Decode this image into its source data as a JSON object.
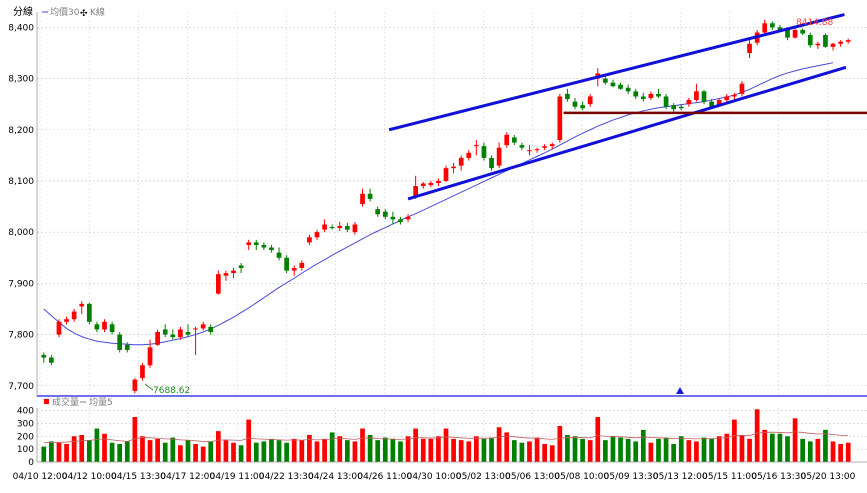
{
  "chart_data": [
    {
      "type": "candlestick",
      "legend": {
        "title": "分線",
        "items": [
          {
            "label": "均價30",
            "color": "#4a4adb"
          },
          {
            "label": "K線",
            "color": "#000000"
          }
        ]
      },
      "y_ticks": [
        "8,400",
        "8,300",
        "8,200",
        "8,100",
        "8,000",
        "7,900",
        "7,800",
        "7,700"
      ],
      "ylim": [
        7680,
        8430
      ],
      "grid": true,
      "colors": {
        "up": "#ff0000",
        "down": "#008000",
        "ma": "#4a4adb",
        "channel": "#1010d8",
        "support": "#7a0000"
      },
      "high_label": "8414.88",
      "low_label": "7688.62",
      "candles": [
        [
          7760,
          7765,
          7745,
          7755
        ],
        [
          7755,
          7760,
          7740,
          7745
        ],
        [
          7800,
          7830,
          7795,
          7825
        ],
        [
          7825,
          7835,
          7820,
          7830
        ],
        [
          7830,
          7850,
          7825,
          7845
        ],
        [
          7855,
          7865,
          7840,
          7860
        ],
        [
          7860,
          7862,
          7820,
          7825
        ],
        [
          7820,
          7825,
          7805,
          7810
        ],
        [
          7810,
          7830,
          7805,
          7825
        ],
        [
          7820,
          7825,
          7800,
          7805
        ],
        [
          7800,
          7805,
          7765,
          7770
        ],
        [
          7780,
          7785,
          7765,
          7770
        ],
        [
          7690,
          7715,
          7685,
          7712
        ],
        [
          7715,
          7745,
          7710,
          7740
        ],
        [
          7740,
          7790,
          7735,
          7775
        ],
        [
          7780,
          7810,
          7778,
          7805
        ],
        [
          7810,
          7820,
          7795,
          7800
        ],
        [
          7800,
          7810,
          7790,
          7795
        ],
        [
          7795,
          7815,
          7790,
          7810
        ],
        [
          7805,
          7820,
          7795,
          7800
        ],
        [
          7810,
          7815,
          7760,
          7812
        ],
        [
          7812,
          7825,
          7808,
          7820
        ],
        [
          7815,
          7820,
          7800,
          7805
        ],
        [
          7880,
          7925,
          7878,
          7918
        ],
        [
          7915,
          7925,
          7905,
          7920
        ],
        [
          7920,
          7930,
          7910,
          7925
        ],
        [
          7935,
          7940,
          7920,
          7930
        ],
        [
          7975,
          7985,
          7965,
          7980
        ],
        [
          7980,
          7985,
          7965,
          7975
        ],
        [
          7975,
          7980,
          7965,
          7970
        ],
        [
          7970,
          7975,
          7960,
          7965
        ],
        [
          7960,
          7970,
          7945,
          7950
        ],
        [
          7950,
          7955,
          7920,
          7925
        ],
        [
          7925,
          7935,
          7915,
          7930
        ],
        [
          7930,
          7945,
          7925,
          7940
        ],
        [
          7980,
          7995,
          7975,
          7990
        ],
        [
          7990,
          8005,
          7985,
          8000
        ],
        [
          8005,
          8025,
          8000,
          8015
        ],
        [
          8010,
          8015,
          8005,
          8008
        ],
        [
          8008,
          8020,
          8002,
          8012
        ],
        [
          8012,
          8018,
          8000,
          8005
        ],
        [
          8000,
          8020,
          7995,
          8015
        ],
        [
          8055,
          8085,
          8050,
          8075
        ],
        [
          8075,
          8085,
          8060,
          8065
        ],
        [
          8045,
          8050,
          8030,
          8035
        ],
        [
          8040,
          8045,
          8025,
          8030
        ],
        [
          8030,
          8040,
          8015,
          8025
        ],
        [
          8025,
          8030,
          8015,
          8020
        ],
        [
          8025,
          8035,
          8020,
          8030
        ],
        [
          8070,
          8110,
          8065,
          8090
        ],
        [
          8090,
          8098,
          8085,
          8095
        ],
        [
          8092,
          8100,
          8088,
          8096
        ],
        [
          8096,
          8105,
          8090,
          8100
        ],
        [
          8100,
          8130,
          8098,
          8125
        ],
        [
          8125,
          8135,
          8115,
          8128
        ],
        [
          8130,
          8150,
          8120,
          8145
        ],
        [
          8145,
          8160,
          8140,
          8155
        ],
        [
          8168,
          8180,
          8150,
          8170
        ],
        [
          8168,
          8175,
          8140,
          8145
        ],
        [
          8145,
          8150,
          8120,
          8125
        ],
        [
          8130,
          8175,
          8125,
          8165
        ],
        [
          8170,
          8195,
          8165,
          8190
        ],
        [
          8185,
          8190,
          8170,
          8175
        ],
        [
          8170,
          8175,
          8160,
          8165
        ],
        [
          8160,
          8170,
          8150,
          8160
        ],
        [
          8160,
          8165,
          8155,
          8162
        ],
        [
          8165,
          8172,
          8160,
          8168
        ],
        [
          8168,
          8175,
          8162,
          8172
        ],
        [
          8180,
          8270,
          8175,
          8265
        ],
        [
          8270,
          8280,
          8255,
          8260
        ],
        [
          8255,
          8262,
          8240,
          8245
        ],
        [
          8248,
          8255,
          8238,
          8242
        ],
        [
          8250,
          8270,
          8245,
          8265
        ],
        [
          8300,
          8320,
          8285,
          8310
        ],
        [
          8300,
          8308,
          8288,
          8292
        ],
        [
          8292,
          8298,
          8283,
          8285
        ],
        [
          8288,
          8292,
          8278,
          8280
        ],
        [
          8282,
          8288,
          8270,
          8275
        ],
        [
          8275,
          8280,
          8260,
          8265
        ],
        [
          8265,
          8272,
          8255,
          8260
        ],
        [
          8262,
          8275,
          8258,
          8270
        ],
        [
          8270,
          8280,
          8262,
          8265
        ],
        [
          8265,
          8270,
          8240,
          8245
        ],
        [
          8248,
          8252,
          8235,
          8240
        ],
        [
          8245,
          8250,
          8238,
          8242
        ],
        [
          8250,
          8262,
          8245,
          8258
        ],
        [
          8258,
          8290,
          8255,
          8275
        ],
        [
          8275,
          8278,
          8250,
          8255
        ],
        [
          8255,
          8260,
          8240,
          8245
        ],
        [
          8248,
          8262,
          8245,
          8258
        ],
        [
          8258,
          8270,
          8252,
          8265
        ],
        [
          8265,
          8272,
          8258,
          8268
        ],
        [
          8270,
          8295,
          8265,
          8290
        ],
        [
          8350,
          8375,
          8340,
          8368
        ],
        [
          8370,
          8395,
          8365,
          8390
        ],
        [
          8390,
          8415,
          8385,
          8408
        ],
        [
          8408,
          8412,
          8395,
          8400
        ],
        [
          8400,
          8405,
          8390,
          8395
        ],
        [
          8395,
          8400,
          8375,
          8380
        ],
        [
          8380,
          8398,
          8378,
          8395
        ],
        [
          8395,
          8398,
          8385,
          8388
        ],
        [
          8385,
          8390,
          8360,
          8365
        ],
        [
          8365,
          8372,
          8358,
          8368
        ],
        [
          8385,
          8388,
          8360,
          8362
        ],
        [
          8362,
          8370,
          8355,
          8368
        ],
        [
          8368,
          8375,
          8362,
          8372
        ],
        [
          8372,
          8378,
          8368,
          8375
        ]
      ],
      "ma30": [
        7850,
        7837,
        7824,
        7812,
        7803,
        7796,
        7791,
        7787,
        7785,
        7783,
        7782,
        7781,
        7780,
        7780,
        7781,
        7783,
        7786,
        7789,
        7792,
        7796,
        7800,
        7805,
        7811,
        7818,
        7826,
        7834,
        7843,
        7852,
        7862,
        7872,
        7882,
        7892,
        7901,
        7910,
        7920,
        7929,
        7938,
        7946,
        7955,
        7963,
        7971,
        7979,
        7987,
        7995,
        8002,
        8009,
        8016,
        8023,
        8030,
        8036,
        8043,
        8050,
        8057,
        8064,
        8071,
        8078,
        8085,
        8092,
        8099,
        8106,
        8113,
        8120,
        8127,
        8134,
        8141,
        8148,
        8155,
        8162,
        8170,
        8178,
        8186,
        8193,
        8200,
        8207,
        8213,
        8219,
        8224,
        8229,
        8233,
        8237,
        8240,
        8243,
        8245,
        8247,
        8249,
        8251,
        8253,
        8255,
        8258,
        8261,
        8264,
        8268,
        8273,
        8279,
        8286,
        8293,
        8300,
        8306,
        8311,
        8315,
        8319,
        8322,
        8325,
        8328,
        8331
      ],
      "channel_upper": [
        [
          8095,
          8200
        ],
        [
          8400,
          8425
        ]
      ],
      "channel_lower": [
        [
          8080,
          8065
        ],
        [
          8400,
          8322
        ]
      ],
      "support_level": 8233
    },
    {
      "type": "bar",
      "legend": {
        "items": [
          {
            "label": "成交量",
            "color": "#ff0000"
          },
          {
            "label": "均量5",
            "color": "#7f7f7f"
          }
        ]
      },
      "y_ticks": [
        "400",
        "300",
        "200",
        "100",
        "0"
      ],
      "ylim": [
        0,
        420
      ],
      "x_labels": [
        "04/10 12:00",
        "04/12 10:00",
        "04/15 13:30",
        "04/17 12:00",
        "04/19 11:00",
        "04/22 13:30",
        "04/24 13:00",
        "04/26 11:00",
        "04/30 10:00",
        "05/02 13:00",
        "05/06 13:00",
        "05/08 10:00",
        "05/09 13:30",
        "05/13 12:00",
        "05/15 11:00",
        "05/16 13:30",
        "05/20 13:00"
      ],
      "volume": [
        120,
        160,
        150,
        140,
        200,
        210,
        170,
        260,
        220,
        150,
        140,
        160,
        350,
        200,
        170,
        180,
        150,
        190,
        130,
        170,
        140,
        120,
        160,
        240,
        170,
        150,
        130,
        330,
        150,
        160,
        180,
        170,
        150,
        180,
        170,
        210,
        160,
        180,
        230,
        200,
        170,
        160,
        260,
        210,
        170,
        190,
        180,
        160,
        200,
        260,
        180,
        180,
        200,
        260,
        180,
        170,
        160,
        200,
        180,
        190,
        270,
        230,
        170,
        150,
        160,
        190,
        140,
        130,
        280,
        210,
        200,
        180,
        170,
        350,
        170,
        200,
        190,
        180,
        160,
        250,
        150,
        180,
        190,
        140,
        200,
        170,
        160,
        190,
        180,
        200,
        220,
        330,
        210,
        180,
        410,
        250,
        220,
        220,
        200,
        340,
        180,
        160,
        180,
        250,
        160,
        140,
        150
      ],
      "volume_ma": [
        150,
        152,
        153,
        155,
        160,
        165,
        168,
        175,
        180,
        172,
        165,
        160,
        180,
        190,
        188,
        185,
        180,
        178,
        172,
        170,
        165,
        160,
        158,
        170,
        172,
        170,
        168,
        185,
        180,
        178,
        175,
        172,
        170,
        172,
        170,
        175,
        172,
        174,
        180,
        185,
        180,
        176,
        185,
        188,
        182,
        180,
        178,
        176,
        180,
        190,
        188,
        186,
        188,
        195,
        192,
        188,
        184,
        186,
        185,
        186,
        195,
        200,
        196,
        190,
        186,
        185,
        180,
        176,
        185,
        190,
        192,
        190,
        188,
        205,
        200,
        198,
        196,
        192,
        188,
        195,
        190,
        188,
        186,
        182,
        184,
        182,
        180,
        182,
        182,
        185,
        190,
        205,
        208,
        205,
        225,
        230,
        232,
        230,
        226,
        235,
        230,
        222,
        218,
        220,
        214,
        208,
        204
      ]
    }
  ]
}
